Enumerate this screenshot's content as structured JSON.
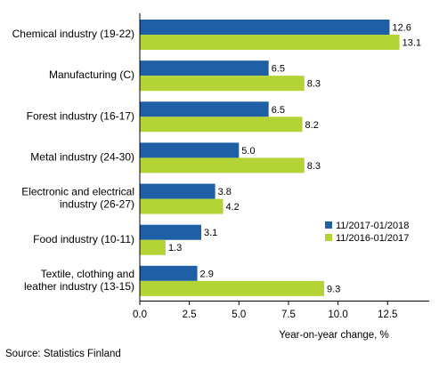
{
  "chart_data": {
    "type": "bar",
    "orientation": "horizontal",
    "categories": [
      [
        "Chemical industry (19-22)"
      ],
      [
        "Manufacturing (C)"
      ],
      [
        "Forest industry (16-17)"
      ],
      [
        "Metal industry (24-30)"
      ],
      [
        "Electronic and electrical",
        "industry (26-27)"
      ],
      [
        "Food industry (10-11)"
      ],
      [
        "Textile, clothing and",
        "leather industry (13-15)"
      ]
    ],
    "series": [
      {
        "name": "11/2017-01/2018",
        "color": "#1f5fa6",
        "values": [
          12.6,
          6.5,
          6.5,
          5.0,
          3.8,
          3.1,
          2.9
        ]
      },
      {
        "name": "11/2016-01/2017",
        "color": "#b4d334",
        "values": [
          13.1,
          8.3,
          8.2,
          8.3,
          4.2,
          1.3,
          9.3
        ]
      }
    ],
    "value_labels": [
      [
        "12.6",
        "6.5",
        "6.5",
        "5.0",
        "3.8",
        "3.1",
        "2.9"
      ],
      [
        "13.1",
        "8.3",
        "8.2",
        "8.3",
        "4.2",
        "1.3",
        "9.3"
      ]
    ],
    "xlim": [
      0,
      14.6
    ],
    "xticks": [
      0,
      2.5,
      5,
      7.5,
      10,
      12.5
    ],
    "xtick_labels": [
      "0.0",
      "2.5",
      "5.0",
      "7.5",
      "10.0",
      "12.5"
    ],
    "xlabel": "Year-on-year change, %",
    "grid": false,
    "legend_position": "right"
  },
  "source": "Source: Statistics Finland"
}
